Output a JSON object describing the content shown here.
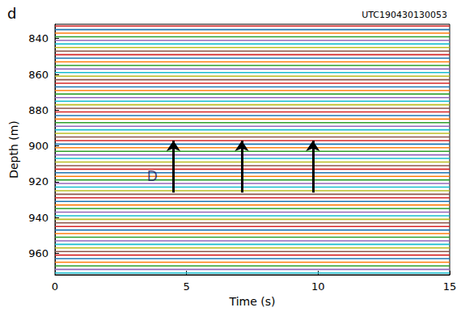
{
  "chart_data": {
    "type": "trace",
    "panel_label": "d",
    "title": "UTC190430130053",
    "x_label": "Time (s)",
    "y_label": "Depth (m)",
    "xlim": [
      0,
      15
    ],
    "xticks": [
      0,
      5,
      10,
      15
    ],
    "ylim": [
      832,
      972
    ],
    "yticks": [
      840,
      860,
      880,
      900,
      920,
      940,
      960
    ],
    "y_inverted": true,
    "grid": false,
    "series": [
      {
        "color": "#d62728",
        "depths": [
          833,
          849,
          865,
          881,
          897,
          913,
          929,
          945,
          961
        ]
      },
      {
        "color": "#1f77b4",
        "depths": [
          835,
          851,
          867,
          883,
          899,
          915,
          931,
          947,
          963
        ]
      },
      {
        "color": "#ff7f0e",
        "depths": [
          837,
          853,
          869,
          885,
          901,
          917,
          933,
          949,
          965
        ]
      },
      {
        "color": "#2ca02c",
        "depths": [
          839,
          855,
          871,
          887,
          903,
          919,
          935,
          951,
          967
        ]
      },
      {
        "color": "#9467bd",
        "depths": [
          841,
          857,
          873,
          889,
          905,
          921,
          937,
          953,
          969
        ]
      },
      {
        "color": "#17becf",
        "depths": [
          843,
          859,
          875,
          891,
          907,
          923,
          939,
          955,
          971
        ]
      },
      {
        "color": "#bcbd22",
        "depths": [
          845,
          861,
          877,
          893,
          909,
          925,
          941,
          957
        ]
      },
      {
        "color": "#8c564b",
        "depths": [
          847,
          863,
          879,
          895,
          911,
          927,
          943,
          959
        ]
      }
    ],
    "arrows": [
      {
        "x": 4.5,
        "from": 926,
        "to": 897
      },
      {
        "x": 7.1,
        "from": 926,
        "to": 897
      },
      {
        "x": 9.8,
        "from": 926,
        "to": 897
      }
    ],
    "annotations": [
      {
        "text": "D",
        "x": 3.7,
        "y": 917
      }
    ]
  }
}
